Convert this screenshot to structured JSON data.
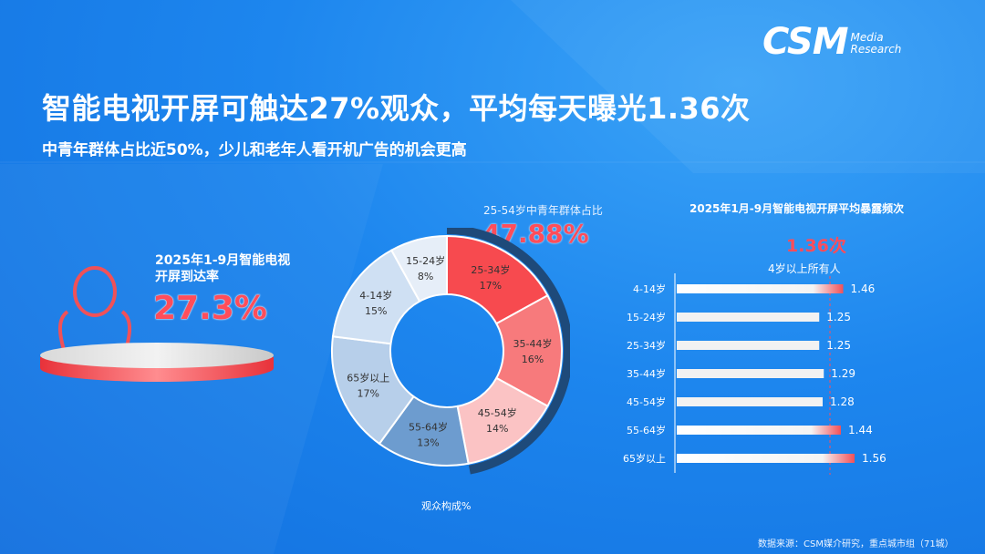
{
  "logo": {
    "main": "CSM",
    "sub_line1": "Media",
    "sub_line2": "Research"
  },
  "title": "智能电视开屏可触达27%观众，平均每天曝光1.36次",
  "subtitle": "中青年群体占比近50%，少儿和老年人看开机广告的机会更高",
  "reach": {
    "label_line1": "2025年1-9月智能电视",
    "label_line2": "开屏到达率",
    "value": "27.3%"
  },
  "donut": {
    "caption": "观众构成%",
    "highlight_label": "25-54岁中青年群体占比",
    "highlight_value": "47.88%"
  },
  "bars": {
    "title": "2025年1月-9月智能电视开屏平均暴露频次",
    "average_value": "1.36次",
    "average_label": "4岁以上所有人"
  },
  "source": "数据来源：CSM媒介研究，重点城市组（71城）",
  "colors": {
    "accent_red": "#ff4d5a",
    "background": "#1d86ee"
  },
  "chart_data": [
    {
      "type": "pie",
      "variant": "donut",
      "categories": [
        "25-34岁",
        "35-44岁",
        "45-54岁",
        "55-64岁",
        "65岁以上",
        "4-14岁",
        "15-24岁"
      ],
      "values": [
        17,
        16,
        14,
        13,
        17,
        15,
        8
      ],
      "labels": [
        "17%",
        "16%",
        "14%",
        "13%",
        "17%",
        "15%",
        "8%"
      ],
      "colors": [
        "#f74a4f",
        "#f77a7c",
        "#fbc3c4",
        "#6d9ccf",
        "#b7cfea",
        "#cfe0f3",
        "#e6eef8"
      ]
    },
    {
      "type": "bar",
      "orientation": "horizontal",
      "categories": [
        "4-14岁",
        "15-24岁",
        "25-34岁",
        "35-44岁",
        "45-54岁",
        "55-64岁",
        "65岁以上"
      ],
      "values": [
        1.46,
        1.25,
        1.25,
        1.29,
        1.28,
        1.44,
        1.56
      ],
      "labels": [
        "1.46",
        "1.25",
        "1.25",
        "1.29",
        "1.28",
        "1.44",
        "1.56"
      ],
      "reference": 1.36
    }
  ]
}
